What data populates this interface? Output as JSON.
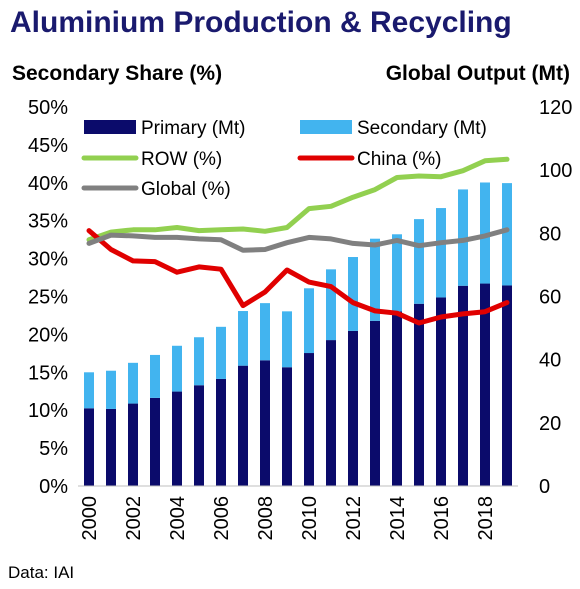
{
  "title": "Aluminium Production & Recycling",
  "source": "Data: IAI",
  "chart_data": {
    "type": "bar+line",
    "title": "Aluminium Production & Recycling",
    "left_axis": {
      "label": "Secondary Share (%)",
      "min": 0,
      "max": 50,
      "ticks": [
        "0%",
        "5%",
        "10%",
        "15%",
        "20%",
        "25%",
        "30%",
        "35%",
        "40%",
        "45%",
        "50%"
      ]
    },
    "right_axis": {
      "label": "Global Output (Mt)",
      "min": 0,
      "max": 120,
      "ticks": [
        "0",
        "20",
        "40",
        "60",
        "80",
        "100",
        "120"
      ]
    },
    "x_tick_labels": [
      "2000",
      "2002",
      "2004",
      "2006",
      "2008",
      "2010",
      "2012",
      "2014",
      "2016",
      "2018"
    ],
    "years": [
      2000,
      2001,
      2002,
      2003,
      2004,
      2005,
      2006,
      2007,
      2008,
      2009,
      2010,
      2011,
      2012,
      2013,
      2014,
      2015,
      2016,
      2017,
      2018,
      2019
    ],
    "bar_series": [
      {
        "name": "Primary (Mt)",
        "color": "#0b0b6b",
        "axis": "right",
        "values": [
          24.6,
          24.4,
          26.1,
          27.9,
          29.9,
          31.9,
          33.9,
          38.1,
          39.8,
          37.6,
          42.1,
          46.2,
          49.1,
          52.3,
          55.3,
          57.7,
          59.7,
          63.4,
          64.1,
          63.5
        ]
      },
      {
        "name": "Secondary (Mt)",
        "color": "#42b4ef",
        "axis": "right",
        "values": [
          11.4,
          12.1,
          12.9,
          13.6,
          14.5,
          15.2,
          16.5,
          17.3,
          18.1,
          17.7,
          20.5,
          22.4,
          23.4,
          26.0,
          24.4,
          26.8,
          28.3,
          30.5,
          32.0,
          32.4
        ]
      }
    ],
    "line_series": [
      {
        "name": "ROW (%)",
        "color": "#92d050",
        "axis": "left",
        "values": [
          32.5,
          33.5,
          33.8,
          33.8,
          34.1,
          33.7,
          33.8,
          33.9,
          33.6,
          34.1,
          36.6,
          36.9,
          38.1,
          39.1,
          40.7,
          40.9,
          40.8,
          41.6,
          42.9,
          43.1
        ]
      },
      {
        "name": "China (%)",
        "color": "#e00000",
        "axis": "left",
        "values": [
          33.7,
          31.2,
          29.7,
          29.6,
          28.2,
          28.9,
          28.6,
          23.8,
          25.6,
          28.5,
          26.9,
          26.3,
          24.2,
          23.1,
          22.8,
          21.5,
          22.3,
          22.7,
          23.0,
          24.2
        ]
      },
      {
        "name": "Global (%)",
        "color": "#808080",
        "axis": "left",
        "values": [
          32.0,
          33.1,
          33.0,
          32.8,
          32.8,
          32.6,
          32.5,
          31.1,
          31.2,
          32.1,
          32.8,
          32.6,
          32.0,
          31.8,
          32.4,
          31.7,
          32.1,
          32.4,
          33.0,
          33.8
        ]
      }
    ],
    "legend_placement": "top",
    "grid": false
  }
}
